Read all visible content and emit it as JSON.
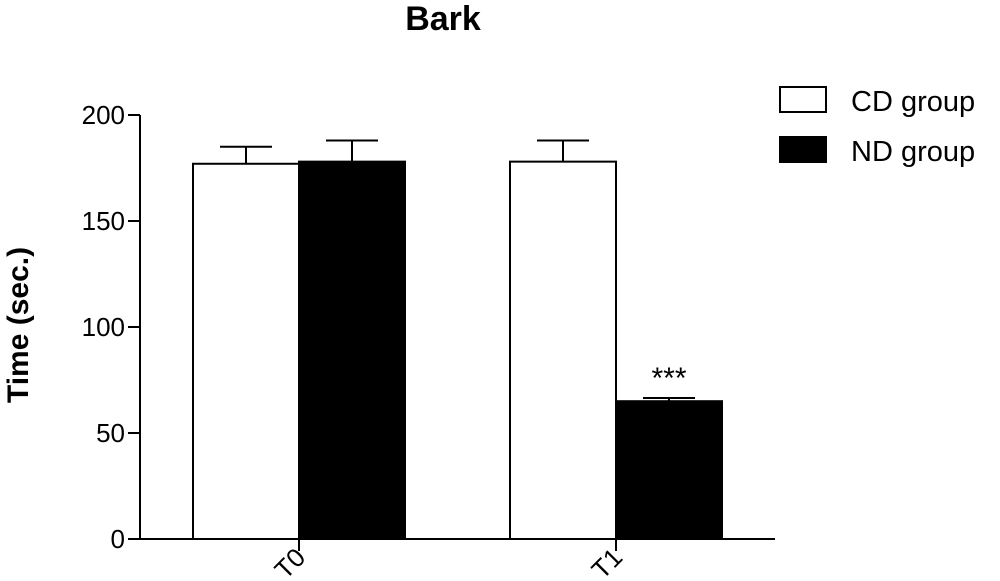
{
  "chart_data": {
    "type": "bar",
    "title": "Bark",
    "ylabel": "Time (sec.)",
    "xlabel": "",
    "categories": [
      "T0",
      "T1"
    ],
    "ylim": [
      0,
      200
    ],
    "yticks": [
      0,
      50,
      100,
      150,
      200
    ],
    "series": [
      {
        "name": "CD group",
        "color": "#ffffff",
        "values": [
          177,
          178
        ],
        "errors": [
          8,
          10
        ]
      },
      {
        "name": "ND group",
        "color": "#000000",
        "values": [
          178,
          65
        ],
        "errors": [
          10,
          1.5
        ]
      }
    ],
    "annotations": [
      {
        "text": "***",
        "category": "T1",
        "series": "ND group"
      }
    ],
    "legend_position": "top-right",
    "grid": false
  }
}
